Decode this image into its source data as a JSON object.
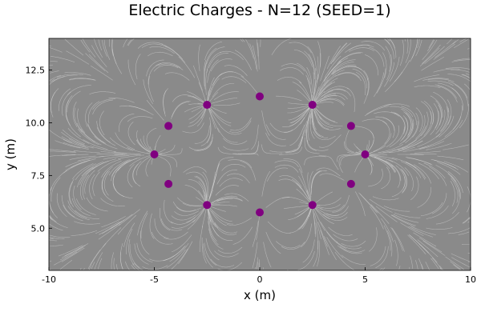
{
  "chart_data": {
    "type": "scatter",
    "title": "Electric Charges - N=12 (SEED=1)",
    "xlabel": "x (m)",
    "ylabel": "y (m)",
    "xlim": [
      -10,
      10
    ],
    "ylim": [
      3,
      14
    ],
    "xticks": [
      -10,
      -5,
      0,
      5,
      10
    ],
    "xtick_labels": [
      "-10",
      "-5",
      "0",
      "5",
      "10"
    ],
    "yticks": [
      5.0,
      7.5,
      10.0,
      12.5
    ],
    "ytick_labels": [
      "5.0",
      "7.5",
      "10.0",
      "12.5"
    ],
    "grid": false,
    "legend": "none",
    "background": "streamlines",
    "colors": {
      "charge": "#800080",
      "field_lines": "#d8d8d8",
      "field_background": "#8a8a8a"
    },
    "points": [
      {
        "x": 0.0,
        "y": 11.25
      },
      {
        "x": 2.5,
        "y": 10.85
      },
      {
        "x": 4.33,
        "y": 9.85
      },
      {
        "x": 5.0,
        "y": 8.5
      },
      {
        "x": 4.33,
        "y": 7.1
      },
      {
        "x": 2.5,
        "y": 6.1
      },
      {
        "x": 0.0,
        "y": 5.75
      },
      {
        "x": -2.5,
        "y": 6.1
      },
      {
        "x": -4.33,
        "y": 7.1
      },
      {
        "x": -5.0,
        "y": 8.5
      },
      {
        "x": -4.33,
        "y": 9.85
      },
      {
        "x": -2.5,
        "y": 10.85
      }
    ]
  }
}
